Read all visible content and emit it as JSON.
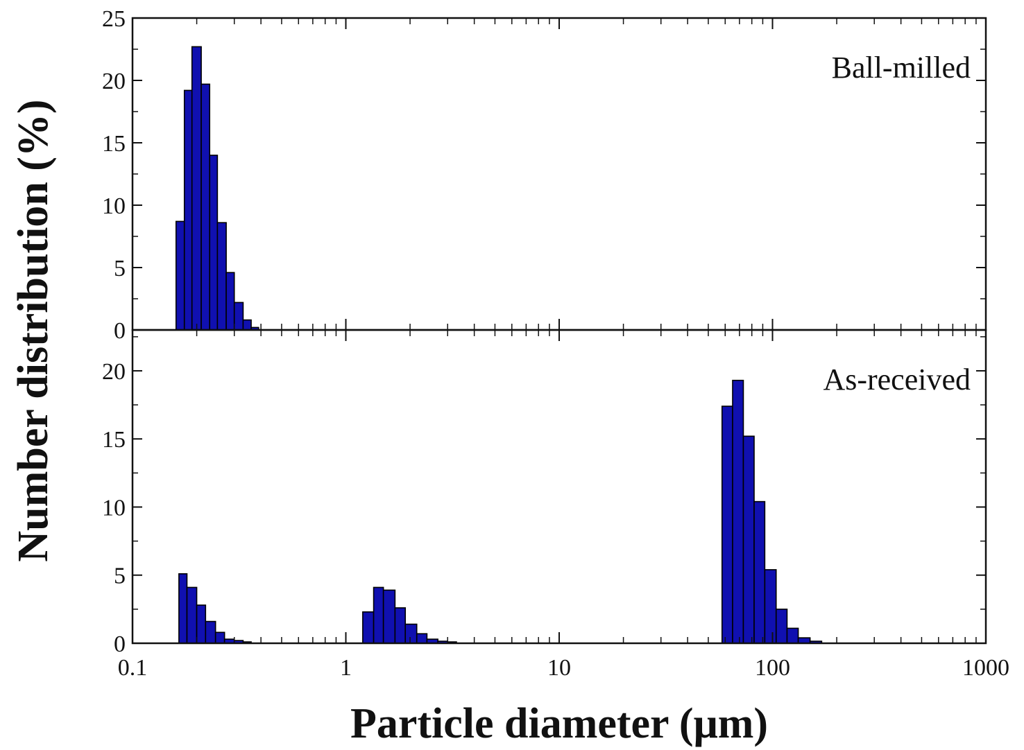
{
  "chart_data": {
    "type": "bar",
    "xlabel": "Particle diameter (μm)",
    "ylabel": "Number distribution (%)",
    "x_scale": "log",
    "xlim": [
      0.1,
      1000
    ],
    "x_ticks": [
      {
        "value": 0.1,
        "label": "0.1"
      },
      {
        "value": 1,
        "label": "1"
      },
      {
        "value": 10,
        "label": "10"
      },
      {
        "value": 100,
        "label": "100"
      },
      {
        "value": 1000,
        "label": "1000"
      }
    ],
    "bar_color": "#1010b0",
    "bar_edge_color": "#000000",
    "panels": [
      {
        "label": "Ball-milled",
        "ylim": [
          0,
          25
        ],
        "y_ticks": [
          0,
          5,
          10,
          15,
          20,
          25
        ],
        "bars": [
          {
            "x_start": 0.16,
            "x_end": 0.175,
            "value": 8.7
          },
          {
            "x_start": 0.175,
            "x_end": 0.19,
            "value": 19.2
          },
          {
            "x_start": 0.19,
            "x_end": 0.21,
            "value": 22.7
          },
          {
            "x_start": 0.21,
            "x_end": 0.23,
            "value": 19.7
          },
          {
            "x_start": 0.23,
            "x_end": 0.25,
            "value": 14.0
          },
          {
            "x_start": 0.25,
            "x_end": 0.275,
            "value": 8.6
          },
          {
            "x_start": 0.275,
            "x_end": 0.3,
            "value": 4.6
          },
          {
            "x_start": 0.3,
            "x_end": 0.33,
            "value": 2.2
          },
          {
            "x_start": 0.33,
            "x_end": 0.36,
            "value": 0.8
          },
          {
            "x_start": 0.36,
            "x_end": 0.39,
            "value": 0.2
          }
        ]
      },
      {
        "label": "As-received",
        "ylim": [
          0,
          23
        ],
        "y_ticks": [
          0,
          5,
          10,
          15,
          20
        ],
        "bars": [
          {
            "x_start": 0.165,
            "x_end": 0.18,
            "value": 5.1
          },
          {
            "x_start": 0.18,
            "x_end": 0.2,
            "value": 4.1
          },
          {
            "x_start": 0.2,
            "x_end": 0.22,
            "value": 2.8
          },
          {
            "x_start": 0.22,
            "x_end": 0.245,
            "value": 1.6
          },
          {
            "x_start": 0.245,
            "x_end": 0.27,
            "value": 0.8
          },
          {
            "x_start": 0.27,
            "x_end": 0.3,
            "value": 0.3
          },
          {
            "x_start": 0.3,
            "x_end": 0.33,
            "value": 0.2
          },
          {
            "x_start": 0.33,
            "x_end": 0.36,
            "value": 0.1
          },
          {
            "x_start": 1.2,
            "x_end": 1.35,
            "value": 2.3
          },
          {
            "x_start": 1.35,
            "x_end": 1.5,
            "value": 4.1
          },
          {
            "x_start": 1.5,
            "x_end": 1.7,
            "value": 3.9
          },
          {
            "x_start": 1.7,
            "x_end": 1.9,
            "value": 2.6
          },
          {
            "x_start": 1.9,
            "x_end": 2.15,
            "value": 1.4
          },
          {
            "x_start": 2.15,
            "x_end": 2.4,
            "value": 0.7
          },
          {
            "x_start": 2.4,
            "x_end": 2.7,
            "value": 0.3
          },
          {
            "x_start": 2.7,
            "x_end": 3.0,
            "value": 0.15
          },
          {
            "x_start": 3.0,
            "x_end": 3.3,
            "value": 0.1
          },
          {
            "x_start": 58,
            "x_end": 65,
            "value": 17.4
          },
          {
            "x_start": 65,
            "x_end": 73,
            "value": 19.3
          },
          {
            "x_start": 73,
            "x_end": 82,
            "value": 15.2
          },
          {
            "x_start": 82,
            "x_end": 92,
            "value": 10.4
          },
          {
            "x_start": 92,
            "x_end": 104,
            "value": 5.4
          },
          {
            "x_start": 104,
            "x_end": 117,
            "value": 2.5
          },
          {
            "x_start": 117,
            "x_end": 132,
            "value": 1.1
          },
          {
            "x_start": 132,
            "x_end": 150,
            "value": 0.4
          },
          {
            "x_start": 150,
            "x_end": 170,
            "value": 0.15
          }
        ]
      }
    ]
  }
}
